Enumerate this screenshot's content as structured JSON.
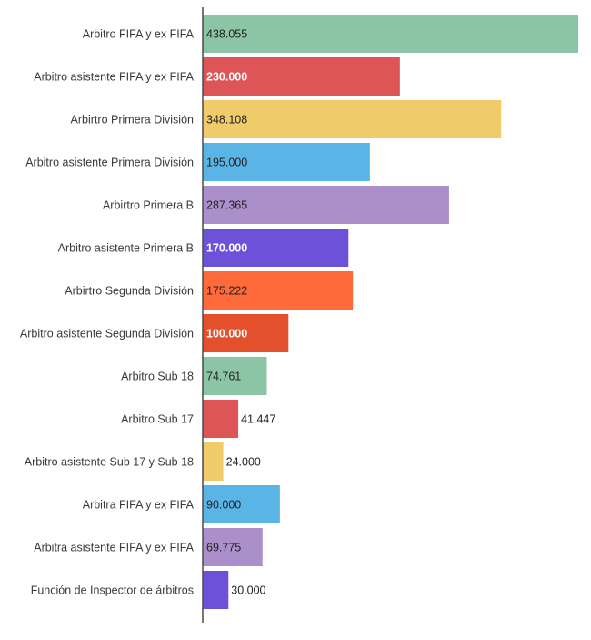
{
  "chart_data": {
    "type": "bar",
    "orientation": "horizontal",
    "categories": [
      "Arbitro FIFA y ex FIFA",
      "Arbitro asistente FIFA y ex FIFA",
      "Arbirtro Primera División",
      "Arbitro asistente Primera División",
      "Arbirtro Primera B",
      "Arbitro asistente Primera B",
      "Arbirtro Segunda División",
      "Arbitro asistente Segunda División",
      "Arbitro Sub 18",
      "Arbitro Sub 17",
      "Arbitro asistente Sub 17 y Sub 18",
      "Arbitra FIFA y ex FIFA",
      "Arbitra asistente FIFA y ex FIFA",
      "Función de Inspector de árbitros"
    ],
    "values": [
      438055,
      230000,
      348108,
      195000,
      287365,
      170000,
      175222,
      100000,
      74761,
      41447,
      24000,
      90000,
      69775,
      30000
    ],
    "value_labels": [
      "438.055",
      "230.000",
      "348.108",
      "195.000",
      "287.365",
      "170.000",
      "175.222",
      "100.000",
      "74.761",
      "41.447",
      "24.000",
      "90.000",
      "69.775",
      "30.000"
    ],
    "colors": [
      "#8cc5a6",
      "#de5558",
      "#f0cb6a",
      "#5ab4e6",
      "#ab8fcb",
      "#6d52d9",
      "#fe6a3a",
      "#e4502c",
      "#8cc5a6",
      "#de5558",
      "#f0cb6a",
      "#5ab4e6",
      "#ab8fcb",
      "#6d52d9"
    ],
    "label_colors": [
      "#222222",
      "#ffffff",
      "#222222",
      "#222222",
      "#222222",
      "#ffffff",
      "#222222",
      "#ffffff",
      "#222222",
      "#222222",
      "#222222",
      "#222222",
      "#222222",
      "#222222"
    ],
    "xlim": [
      0,
      438055
    ],
    "title": "",
    "xlabel": "",
    "ylabel": "",
    "grid": false,
    "legend": "none"
  }
}
